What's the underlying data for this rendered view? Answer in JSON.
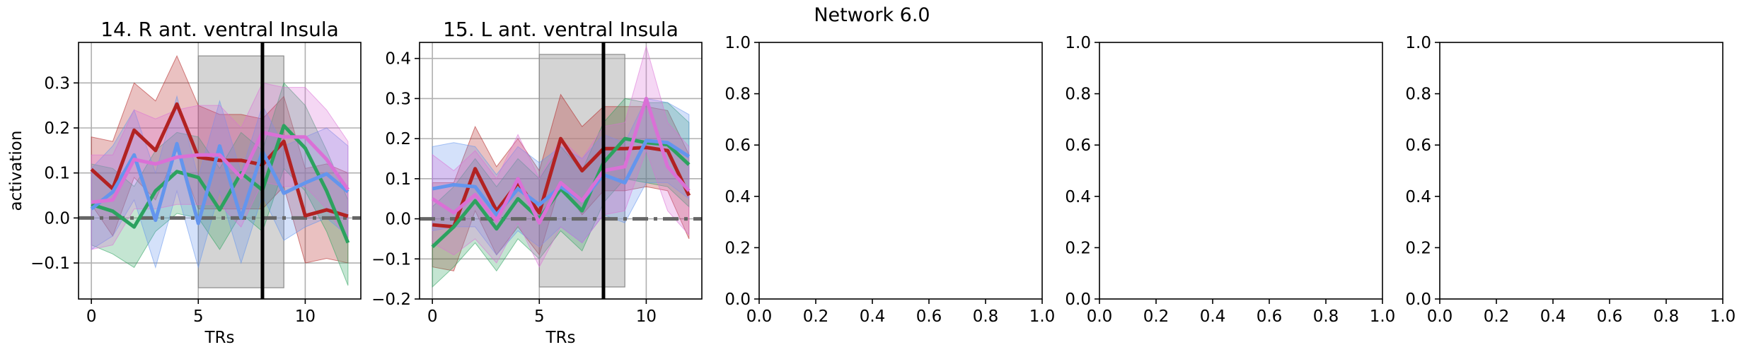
{
  "suptitle": "Network 6.0",
  "colors": {
    "red": "#b22222",
    "green": "#2ca25f",
    "blue": "#6495ed",
    "violet": "#da70d6",
    "shade": "#b8b8b8",
    "zero_line": "#666666",
    "event_line": "#000000"
  },
  "chart_data": [
    {
      "type": "line",
      "title": "14. R ant. ventral Insula",
      "xlabel": "TRs",
      "ylabel": "activation",
      "xlim": [
        -0.6,
        12.6
      ],
      "ylim": [
        -0.18,
        0.39
      ],
      "xticks": [
        0,
        5,
        10
      ],
      "yticks": [
        -0.1,
        0.0,
        0.1,
        0.2,
        0.3
      ],
      "ytick_labels": [
        "−0.1",
        "0.0",
        "0.1",
        "0.2",
        "0.3"
      ],
      "grid": true,
      "shaded_region": {
        "x": [
          5,
          9
        ],
        "y": [
          -0.155,
          0.36
        ]
      },
      "vertical_line": 8,
      "zero_line": 0,
      "x": [
        0,
        1,
        2,
        3,
        4,
        5,
        6,
        7,
        8,
        9,
        10,
        11,
        12
      ],
      "series": [
        {
          "color_key": "red",
          "values": [
            0.108,
            0.065,
            0.195,
            0.15,
            0.253,
            0.135,
            0.128,
            0.128,
            0.118,
            0.17,
            0.005,
            0.018,
            0.004
          ],
          "upper": [
            0.18,
            0.17,
            0.3,
            0.26,
            0.36,
            0.25,
            0.23,
            0.23,
            0.22,
            0.27,
            0.11,
            0.12,
            0.1
          ],
          "lower": [
            0.03,
            -0.04,
            0.09,
            0.04,
            0.15,
            0.02,
            0.02,
            0.02,
            0.02,
            0.07,
            -0.1,
            -0.09,
            -0.1
          ]
        },
        {
          "color_key": "green",
          "values": [
            0.03,
            0.015,
            -0.02,
            0.06,
            0.103,
            0.09,
            0.018,
            0.1,
            0.062,
            0.205,
            0.155,
            0.06,
            -0.055
          ],
          "upper": [
            0.12,
            0.11,
            0.07,
            0.15,
            0.19,
            0.18,
            0.11,
            0.19,
            0.15,
            0.3,
            0.25,
            0.15,
            0.04
          ],
          "lower": [
            -0.06,
            -0.08,
            -0.11,
            -0.03,
            0.01,
            0.0,
            -0.07,
            0.01,
            -0.03,
            0.11,
            0.06,
            -0.03,
            -0.15
          ]
        },
        {
          "color_key": "blue",
          "values": [
            0.02,
            0.058,
            0.14,
            -0.005,
            0.165,
            -0.012,
            0.16,
            0.0,
            0.148,
            0.055,
            0.078,
            0.098,
            0.058
          ],
          "upper": [
            0.11,
            0.16,
            0.24,
            0.1,
            0.27,
            0.09,
            0.26,
            0.1,
            0.25,
            0.16,
            0.18,
            0.2,
            0.16
          ],
          "lower": [
            -0.07,
            -0.04,
            0.04,
            -0.11,
            0.06,
            -0.11,
            0.06,
            -0.1,
            0.05,
            -0.05,
            -0.02,
            0.0,
            -0.04
          ]
        },
        {
          "color_key": "violet",
          "values": [
            0.035,
            0.04,
            0.13,
            0.12,
            0.135,
            0.14,
            0.14,
            0.09,
            0.19,
            0.18,
            0.18,
            0.13,
            0.063
          ],
          "upper": [
            0.14,
            0.14,
            0.24,
            0.22,
            0.24,
            0.25,
            0.25,
            0.2,
            0.3,
            0.29,
            0.29,
            0.24,
            0.17
          ],
          "lower": [
            -0.07,
            -0.06,
            0.02,
            0.02,
            0.03,
            0.03,
            0.03,
            -0.02,
            0.08,
            0.07,
            0.07,
            0.02,
            -0.05
          ]
        }
      ]
    },
    {
      "type": "line",
      "title": "15. L ant. ventral Insula",
      "xlabel": "TRs",
      "ylabel": "",
      "xlim": [
        -0.6,
        12.6
      ],
      "ylim": [
        -0.2,
        0.44
      ],
      "xticks": [
        0,
        5,
        10
      ],
      "yticks": [
        -0.2,
        -0.1,
        0.0,
        0.1,
        0.2,
        0.3,
        0.4
      ],
      "ytick_labels": [
        "−0.2",
        "−0.1",
        "0.0",
        "0.1",
        "0.2",
        "0.3",
        "0.4"
      ],
      "grid": true,
      "shaded_region": {
        "x": [
          5,
          9
        ],
        "y": [
          -0.17,
          0.41
        ]
      },
      "vertical_line": 8,
      "zero_line": 0,
      "x": [
        0,
        1,
        2,
        3,
        4,
        5,
        6,
        7,
        8,
        9,
        10,
        11,
        12
      ],
      "series": [
        {
          "color_key": "red",
          "values": [
            -0.015,
            -0.02,
            0.125,
            0.02,
            0.09,
            0.015,
            0.2,
            0.12,
            0.175,
            0.175,
            0.178,
            0.17,
            0.058
          ],
          "upper": [
            0.09,
            0.09,
            0.23,
            0.13,
            0.2,
            0.12,
            0.31,
            0.23,
            0.28,
            0.28,
            0.28,
            0.27,
            0.16
          ],
          "lower": [
            -0.12,
            -0.13,
            0.02,
            -0.09,
            -0.02,
            -0.09,
            0.09,
            0.01,
            0.07,
            0.07,
            0.08,
            0.07,
            -0.05
          ]
        },
        {
          "color_key": "green",
          "values": [
            -0.07,
            -0.02,
            0.045,
            -0.025,
            0.05,
            0.0,
            0.075,
            0.02,
            0.14,
            0.2,
            0.19,
            0.185,
            0.135
          ],
          "upper": [
            0.03,
            0.08,
            0.15,
            0.08,
            0.15,
            0.1,
            0.18,
            0.12,
            0.24,
            0.3,
            0.29,
            0.29,
            0.24
          ],
          "lower": [
            -0.17,
            -0.12,
            -0.06,
            -0.13,
            -0.05,
            -0.1,
            -0.03,
            -0.08,
            0.04,
            0.1,
            0.09,
            0.08,
            0.03
          ]
        },
        {
          "color_key": "blue",
          "values": [
            0.075,
            0.085,
            0.08,
            0.01,
            0.075,
            0.035,
            0.08,
            0.045,
            0.11,
            0.09,
            0.195,
            0.19,
            0.155
          ],
          "upper": [
            0.18,
            0.19,
            0.18,
            0.11,
            0.18,
            0.14,
            0.18,
            0.15,
            0.21,
            0.19,
            0.3,
            0.29,
            0.26
          ],
          "lower": [
            -0.03,
            -0.02,
            -0.02,
            -0.09,
            -0.03,
            -0.07,
            -0.02,
            -0.06,
            0.01,
            -0.01,
            0.09,
            0.09,
            0.05
          ]
        },
        {
          "color_key": "violet",
          "values": [
            0.05,
            0.015,
            0.06,
            -0.005,
            0.1,
            -0.01,
            0.09,
            0.045,
            0.12,
            0.13,
            0.3,
            0.13,
            0.07
          ],
          "upper": [
            0.16,
            0.12,
            0.17,
            0.1,
            0.21,
            0.1,
            0.2,
            0.15,
            0.23,
            0.24,
            0.43,
            0.24,
            0.18
          ],
          "lower": [
            -0.06,
            -0.09,
            -0.05,
            -0.11,
            -0.01,
            -0.12,
            -0.02,
            -0.06,
            0.01,
            0.02,
            0.17,
            0.02,
            -0.04
          ]
        }
      ]
    },
    {
      "type": "line",
      "title": "",
      "xlabel": "",
      "ylabel": "",
      "xlim": [
        0,
        1
      ],
      "ylim": [
        0,
        1
      ],
      "xticks": [
        0.0,
        0.2,
        0.4,
        0.6,
        0.8,
        1.0
      ],
      "yticks": [
        0.0,
        0.2,
        0.4,
        0.6,
        0.8,
        1.0
      ],
      "xtick_labels": [
        "0.0",
        "0.2",
        "0.4",
        "0.6",
        "0.8",
        "1.0"
      ],
      "ytick_labels": [
        "0.0",
        "0.2",
        "0.4",
        "0.6",
        "0.8",
        "1.0"
      ],
      "grid": false,
      "series": []
    },
    {
      "type": "line",
      "title": "",
      "xlabel": "",
      "ylabel": "",
      "xlim": [
        0,
        1
      ],
      "ylim": [
        0,
        1
      ],
      "xticks": [
        0.0,
        0.2,
        0.4,
        0.6,
        0.8,
        1.0
      ],
      "yticks": [
        0.0,
        0.2,
        0.4,
        0.6,
        0.8,
        1.0
      ],
      "xtick_labels": [
        "0.0",
        "0.2",
        "0.4",
        "0.6",
        "0.8",
        "1.0"
      ],
      "ytick_labels": [
        "0.0",
        "0.2",
        "0.4",
        "0.6",
        "0.8",
        "1.0"
      ],
      "grid": false,
      "series": []
    },
    {
      "type": "line",
      "title": "",
      "xlabel": "",
      "ylabel": "",
      "xlim": [
        0,
        1
      ],
      "ylim": [
        0,
        1
      ],
      "xticks": [
        0.0,
        0.2,
        0.4,
        0.6,
        0.8,
        1.0
      ],
      "yticks": [
        0.0,
        0.2,
        0.4,
        0.6,
        0.8,
        1.0
      ],
      "xtick_labels": [
        "0.0",
        "0.2",
        "0.4",
        "0.6",
        "0.8",
        "1.0"
      ],
      "ytick_labels": [
        "0.0",
        "0.2",
        "0.4",
        "0.6",
        "0.8",
        "1.0"
      ],
      "grid": false,
      "series": []
    }
  ]
}
